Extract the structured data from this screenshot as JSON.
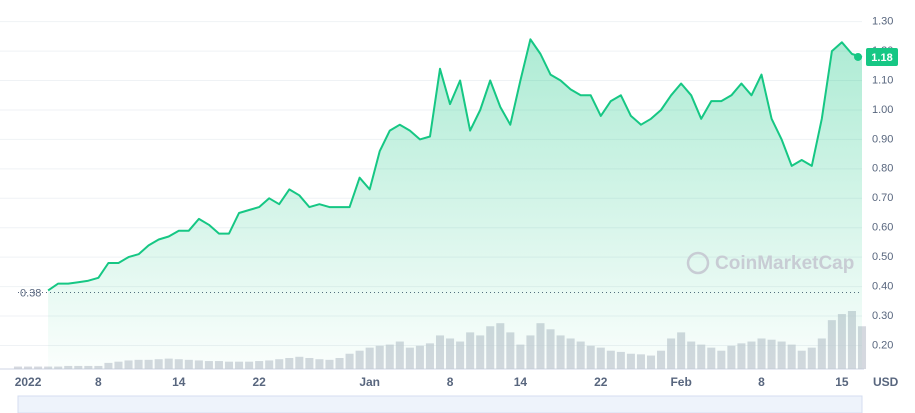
{
  "chart_data": {
    "type": "area",
    "watermark": "CoinMarketCap",
    "unit": "USD",
    "color": "#16c784",
    "grid": true,
    "categories": [
      null,
      "2022",
      null,
      null,
      null,
      null,
      null,
      null,
      "8",
      null,
      null,
      null,
      null,
      null,
      null,
      null,
      "14",
      null,
      null,
      null,
      null,
      null,
      null,
      null,
      "22",
      null,
      null,
      null,
      null,
      null,
      null,
      null,
      null,
      null,
      null,
      "Jan",
      null,
      null,
      null,
      null,
      null,
      null,
      null,
      "8",
      null,
      null,
      null,
      null,
      null,
      null,
      "14",
      null,
      null,
      null,
      null,
      null,
      null,
      null,
      "22",
      null,
      null,
      null,
      null,
      null,
      null,
      null,
      "Feb",
      null,
      null,
      null,
      null,
      null,
      null,
      null,
      "8",
      null,
      null,
      null,
      null,
      null,
      null,
      null,
      "15",
      null,
      null
    ],
    "values": [
      null,
      null,
      null,
      0.387,
      0.41,
      0.41,
      0.415,
      0.42,
      0.43,
      0.48,
      0.48,
      0.5,
      0.51,
      0.54,
      0.56,
      0.57,
      0.59,
      0.59,
      0.63,
      0.61,
      0.58,
      0.58,
      0.65,
      0.66,
      0.67,
      0.7,
      0.68,
      0.73,
      0.71,
      0.67,
      0.68,
      0.67,
      0.67,
      0.67,
      0.77,
      0.73,
      0.86,
      0.93,
      0.95,
      0.93,
      0.9,
      0.91,
      1.14,
      1.02,
      1.1,
      0.93,
      1.0,
      1.1,
      1.01,
      0.95,
      1.1,
      1.24,
      1.19,
      1.12,
      1.1,
      1.07,
      1.05,
      1.05,
      0.98,
      1.03,
      1.05,
      0.98,
      0.95,
      0.97,
      1.0,
      1.05,
      1.09,
      1.05,
      0.97,
      1.03,
      1.03,
      1.05,
      1.09,
      1.05,
      1.12,
      0.97,
      0.9,
      0.81,
      0.83,
      0.81,
      0.97,
      1.2,
      1.23,
      1.19,
      1.18
    ],
    "volume": [
      4,
      4,
      4,
      4,
      4,
      5,
      5,
      5,
      5,
      10,
      12,
      14,
      15,
      15,
      16,
      17,
      16,
      15,
      14,
      13,
      13,
      12,
      12,
      12,
      13,
      14,
      16,
      18,
      20,
      18,
      16,
      15,
      18,
      25,
      30,
      35,
      38,
      40,
      45,
      35,
      38,
      42,
      55,
      50,
      45,
      60,
      55,
      70,
      75,
      60,
      40,
      55,
      75,
      65,
      55,
      50,
      45,
      38,
      35,
      30,
      28,
      25,
      24,
      22,
      30,
      50,
      60,
      45,
      40,
      35,
      30,
      38,
      42,
      45,
      50,
      48,
      45,
      40,
      30,
      35,
      50,
      80,
      90,
      95,
      70
    ],
    "ylim": [
      0.12,
      1.36
    ],
    "yticks": [
      {
        "value": 0.2,
        "label": "0.20"
      },
      {
        "value": 0.3,
        "label": "0.30"
      },
      {
        "value": 0.4,
        "label": "0.40"
      },
      {
        "value": 0.5,
        "label": "0.50"
      },
      {
        "value": 0.6,
        "label": "0.60"
      },
      {
        "value": 0.7,
        "label": "0.70"
      },
      {
        "value": 0.8,
        "label": "0.80"
      },
      {
        "value": 0.9,
        "label": "0.90"
      },
      {
        "value": 1.0,
        "label": "1.00"
      },
      {
        "value": 1.1,
        "label": "1.10"
      },
      {
        "value": 1.2,
        "label": "1.20"
      },
      {
        "value": 1.3,
        "label": "1.30"
      }
    ],
    "reference_line": {
      "value": 0.38,
      "label": "0.38"
    },
    "current_price": {
      "value": 1.18,
      "label": "1.18"
    }
  }
}
